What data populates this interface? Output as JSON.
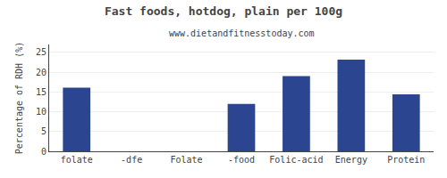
{
  "chart_data": {
    "type": "bar",
    "title": "Fast foods, hotdog, plain per 100g",
    "subtitle": "www.dietandfitnesstoday.com",
    "categories": [
      "folate",
      "-dfe",
      "Folate",
      "-food",
      "Folic-acid",
      "Energy",
      "Protein"
    ],
    "values": [
      16.1,
      0.0,
      0.0,
      12.0,
      19.0,
      23.2,
      14.4
    ],
    "color": "#2b4590",
    "ylabel": "Percentage of RDH (%)",
    "ylim": [
      0,
      27
    ],
    "yticks": [
      0,
      5,
      10,
      15,
      20,
      25
    ],
    "grid": true
  }
}
